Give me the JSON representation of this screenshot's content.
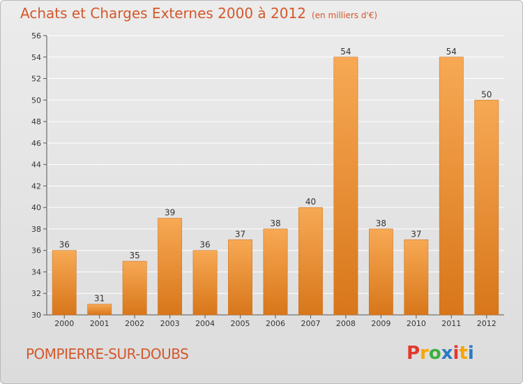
{
  "header": {
    "title": "Achats et Charges Externes 2000 à 2012",
    "unit": "(en milliers d'€)"
  },
  "footer": {
    "location": "POMPIERRE-SUR-DOUBS",
    "brand": "Proxiti",
    "brand_colors": [
      "#e2382b",
      "#f7a600",
      "#3cae3f",
      "#2b7bc0",
      "#e2382b",
      "#f7a600",
      "#2b7bc0"
    ]
  },
  "colors": {
    "bar": "#f39a3c",
    "bar_dark": "#d67a1e",
    "accent": "#d4572b"
  },
  "chart_data": {
    "type": "bar",
    "title": "Achats et Charges Externes 2000 à 2012",
    "subtitle": "(en milliers d'€)",
    "categories": [
      "2000",
      "2001",
      "2002",
      "2003",
      "2004",
      "2005",
      "2006",
      "2007",
      "2008",
      "2009",
      "2010",
      "2011",
      "2012"
    ],
    "values": [
      36,
      31,
      35,
      39,
      36,
      37,
      38,
      40,
      54,
      38,
      37,
      54,
      50
    ],
    "ylim": [
      30,
      56
    ],
    "yticks": [
      30,
      32,
      34,
      36,
      38,
      40,
      42,
      44,
      46,
      48,
      50,
      52,
      54,
      56
    ],
    "grid": true,
    "legend": "none",
    "xlabel": "",
    "ylabel": ""
  }
}
